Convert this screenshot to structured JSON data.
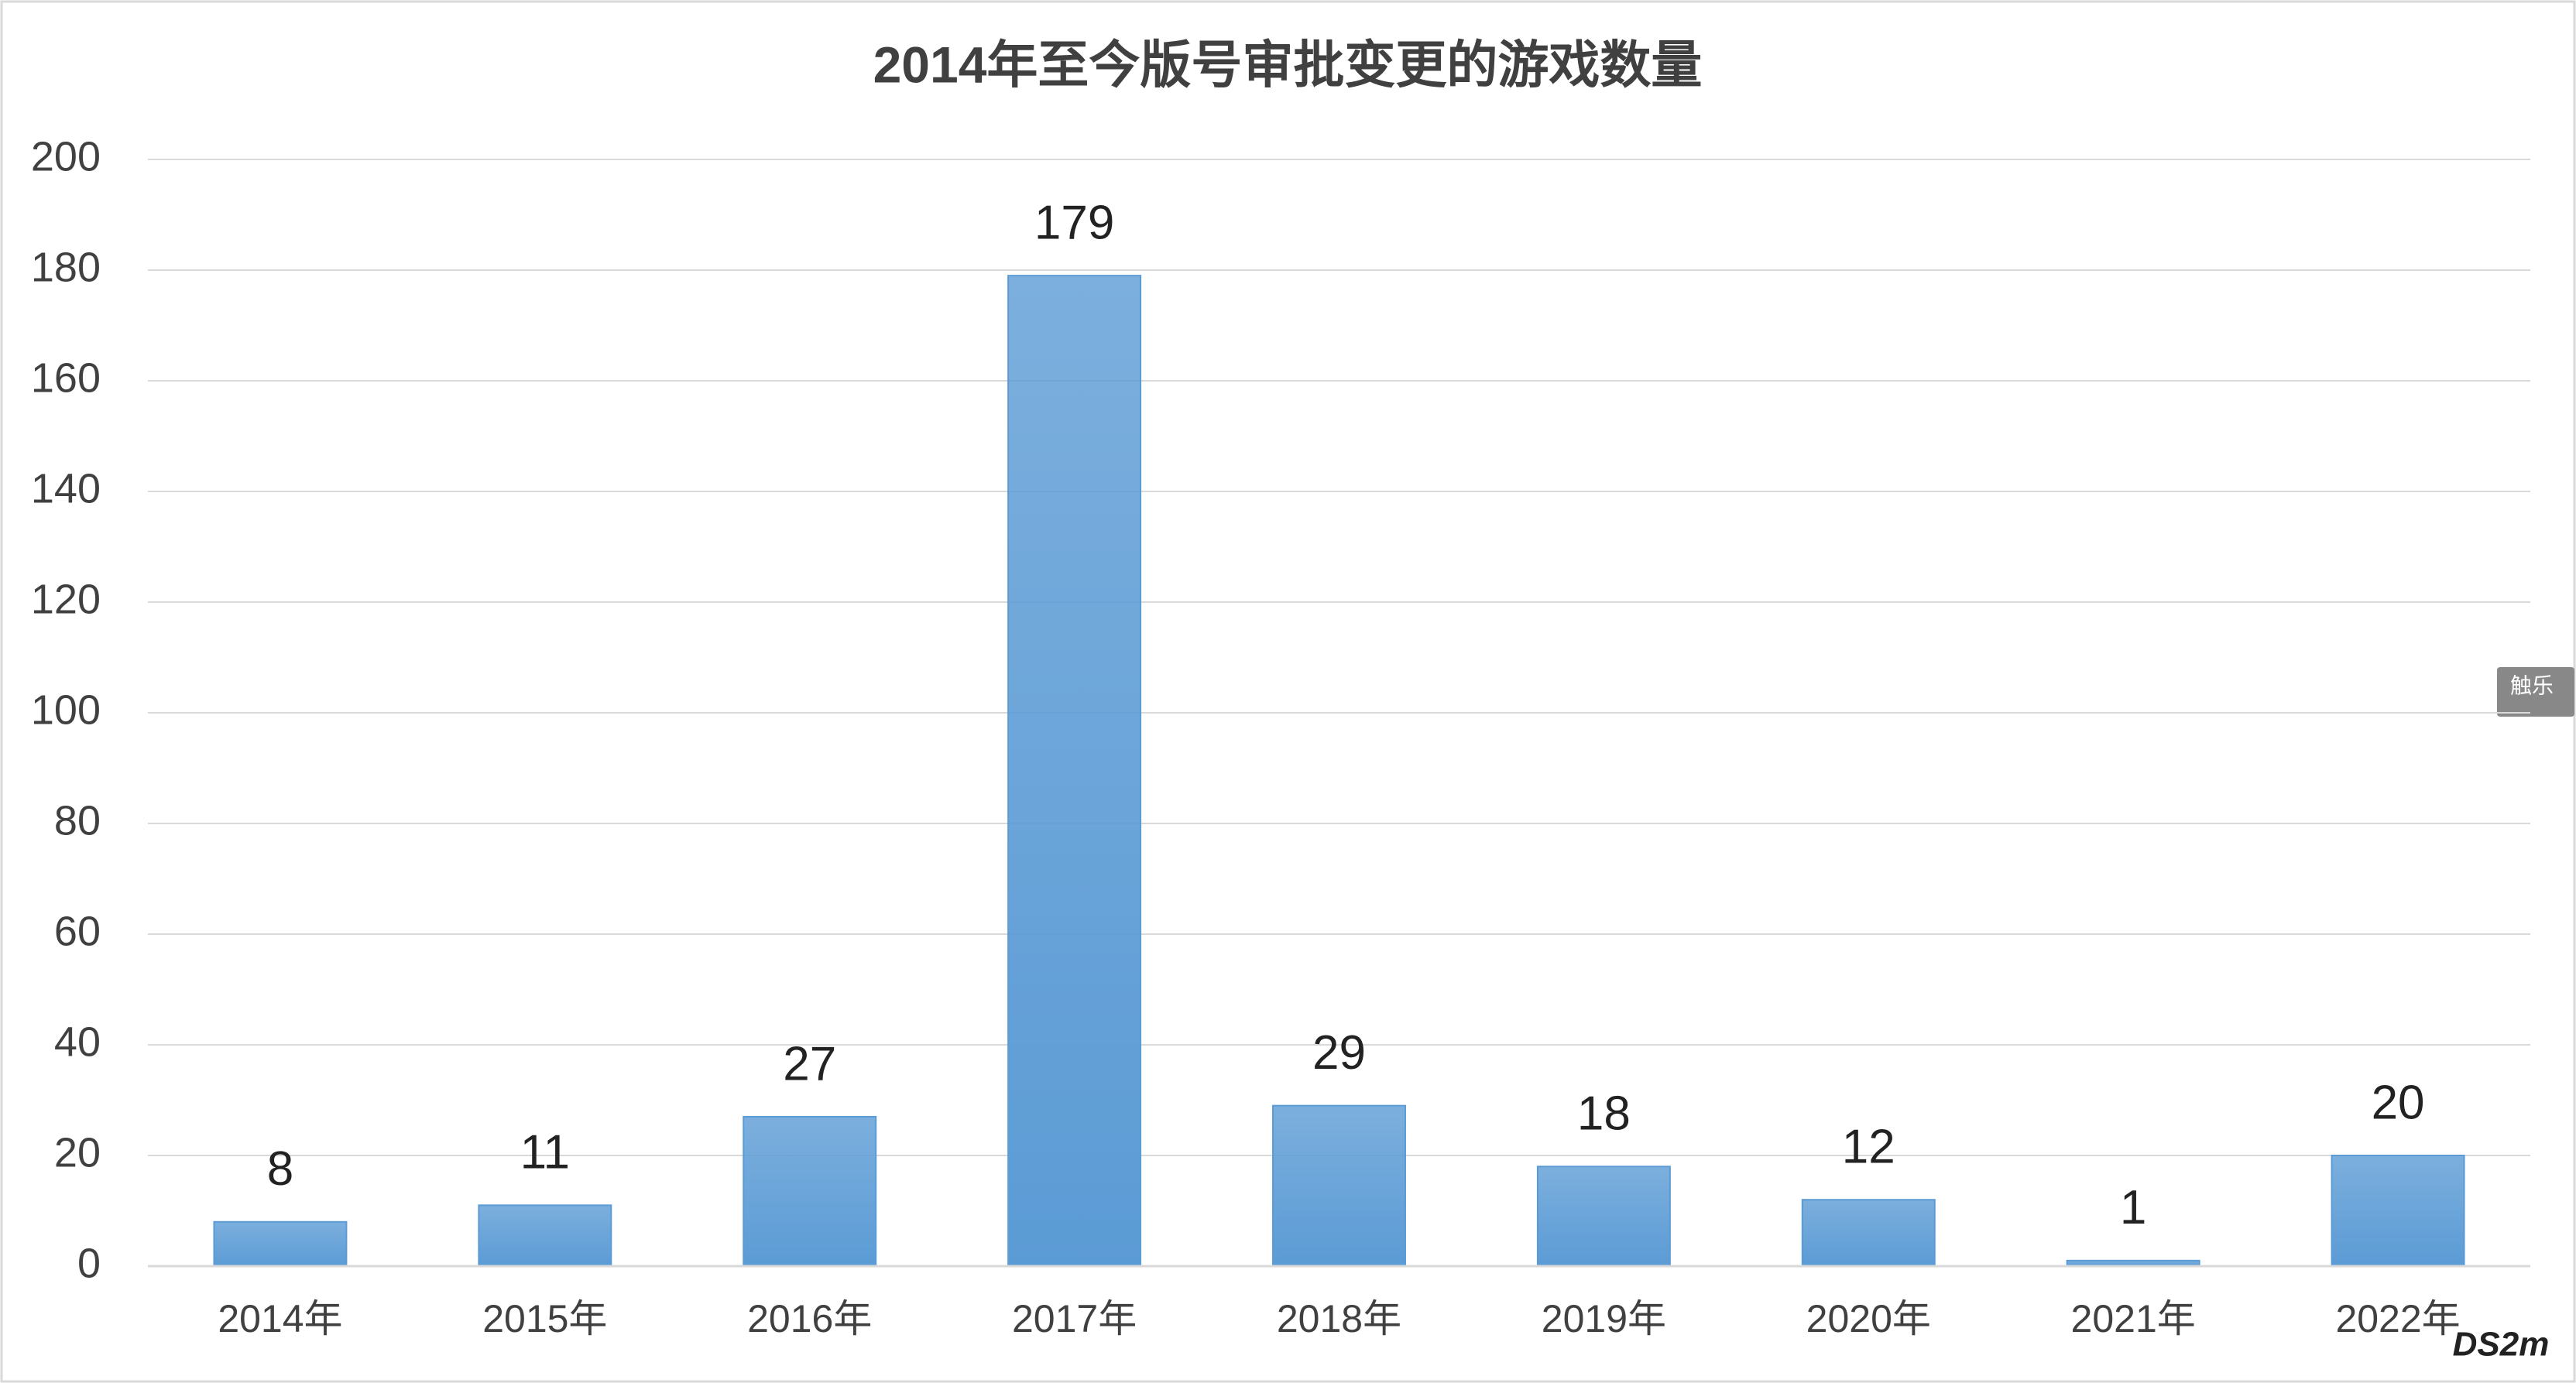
{
  "chart_data": {
    "type": "bar",
    "title": "2014年至今版号审批变更的游戏数量",
    "categories": [
      "2014年",
      "2015年",
      "2016年",
      "2017年",
      "2018年",
      "2019年",
      "2020年",
      "2021年",
      "2022年"
    ],
    "values": [
      8,
      11,
      27,
      179,
      29,
      18,
      12,
      1,
      20
    ],
    "color": "#5b9bd5",
    "ylim": [
      0,
      200
    ],
    "yticks": [
      0,
      20,
      40,
      60,
      80,
      100,
      120,
      140,
      160,
      180,
      200
    ],
    "grid": true,
    "watermarks": [
      "触乐",
      "DS2m"
    ]
  }
}
